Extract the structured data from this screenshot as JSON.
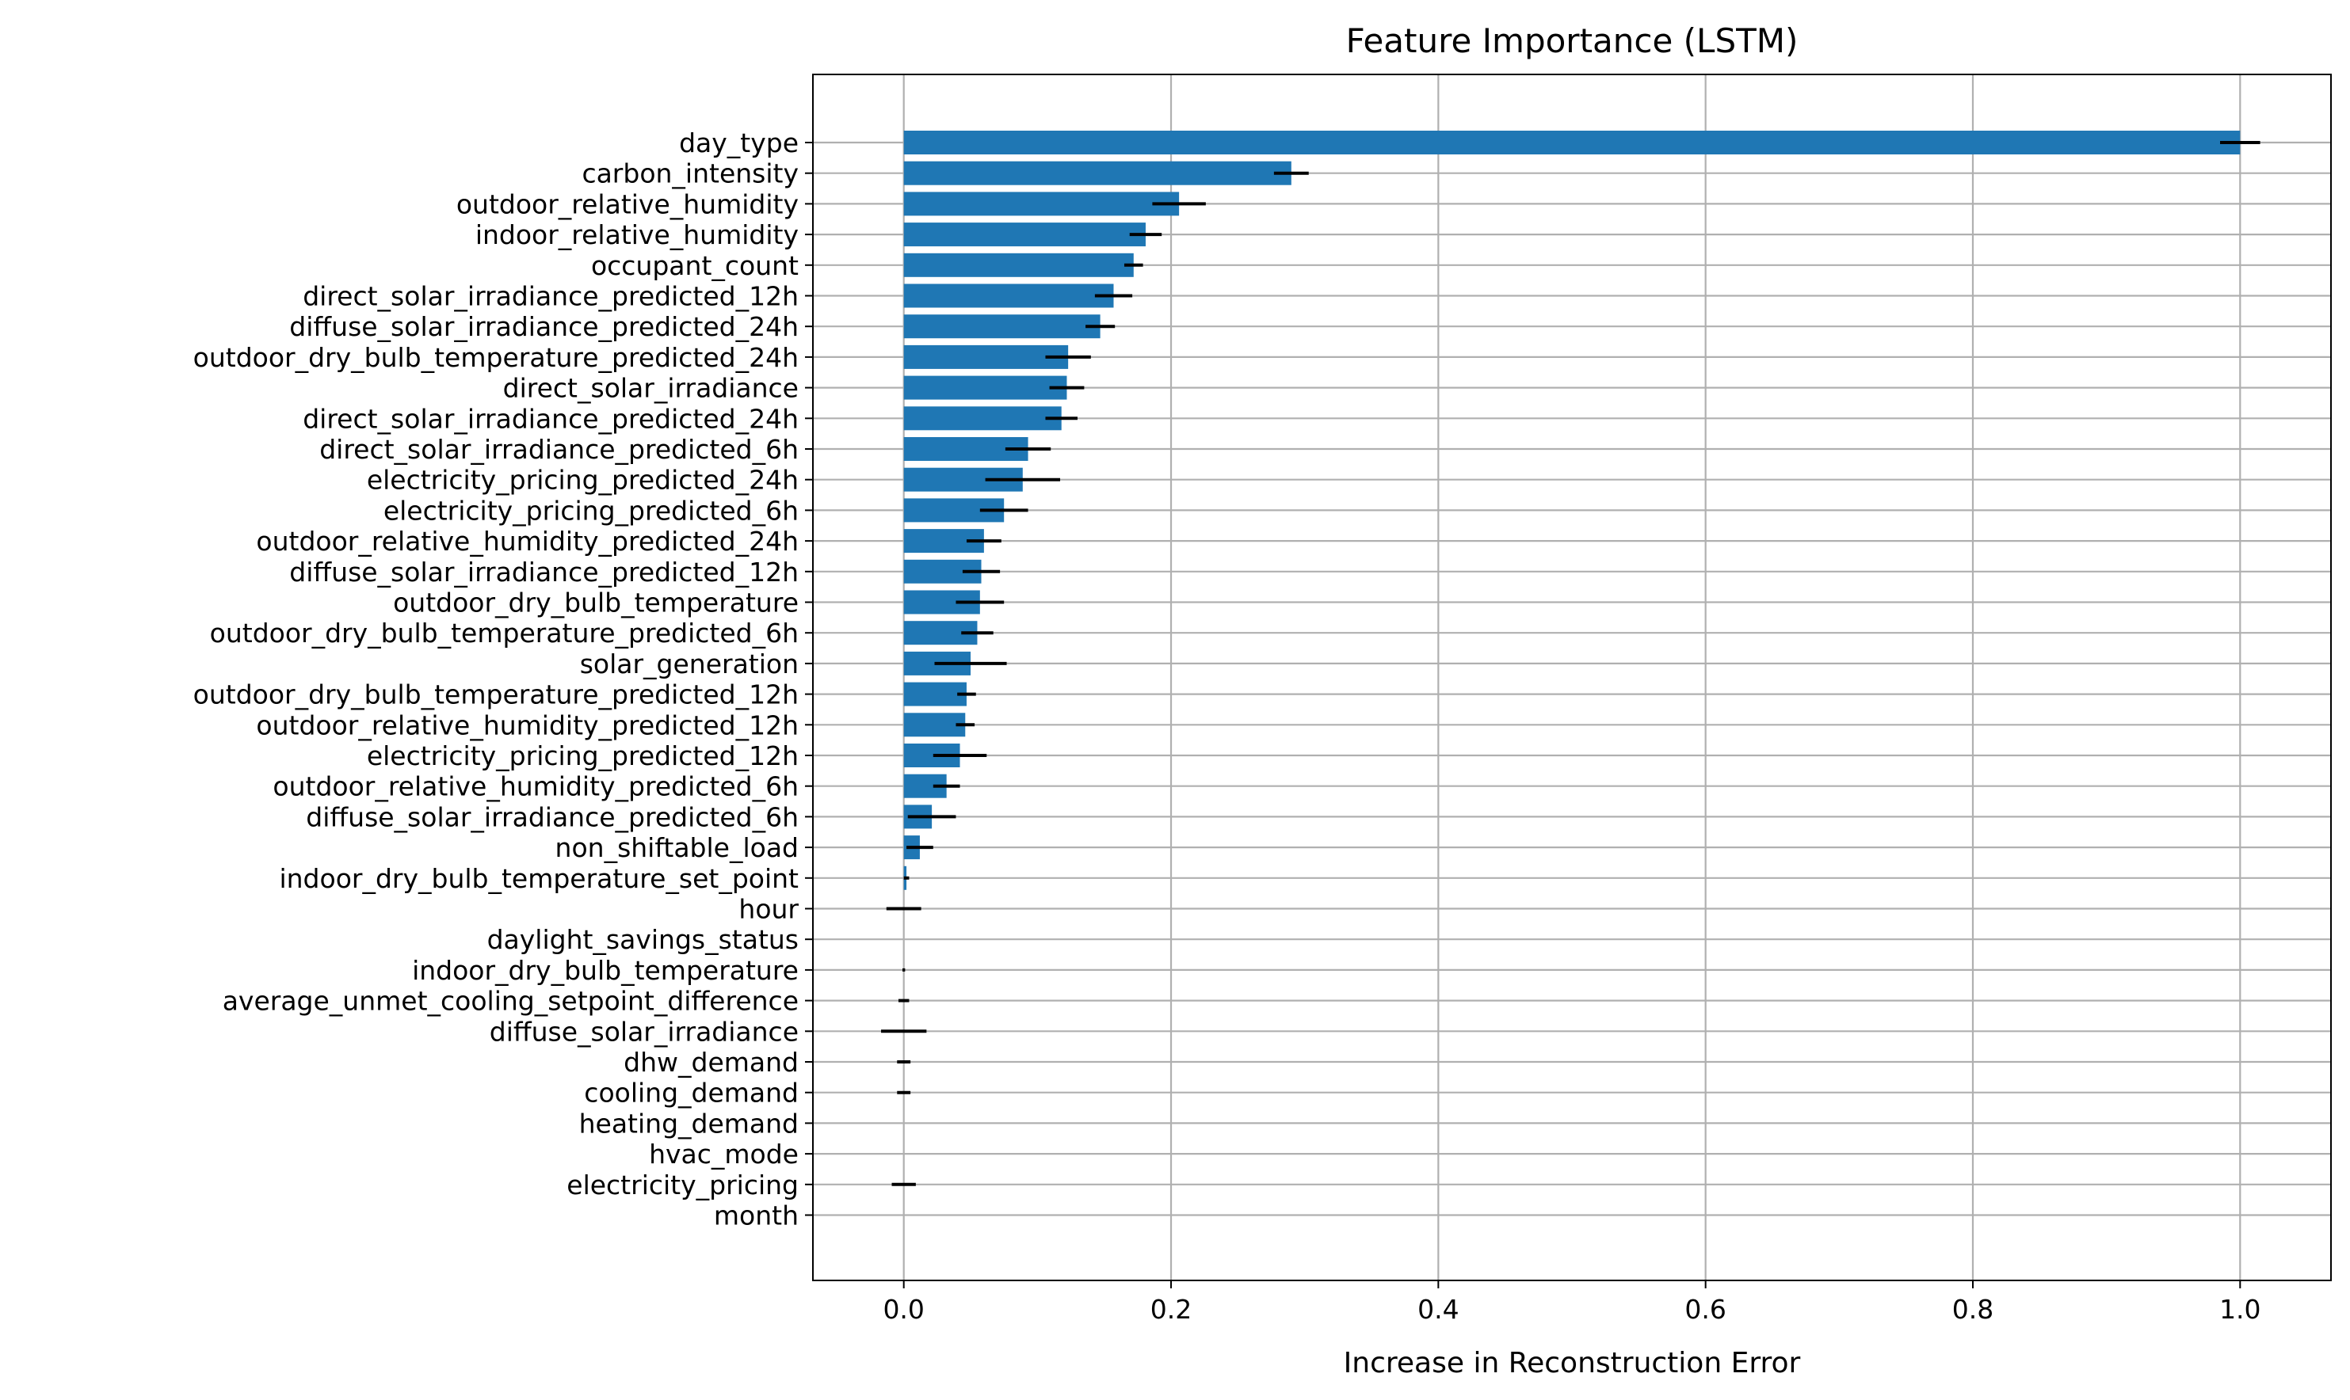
{
  "chart_data": {
    "type": "bar",
    "orientation": "horizontal",
    "title": "Feature Importance (LSTM)",
    "xlabel": "Increase in Reconstruction Error",
    "ylabel": "",
    "xlim": [
      -0.068,
      1.068
    ],
    "xticks": [
      0.0,
      0.2,
      0.4,
      0.6,
      0.8,
      1.0
    ],
    "xtick_labels": [
      "0.0",
      "0.2",
      "0.4",
      "0.6",
      "0.8",
      "1.0"
    ],
    "grid": true,
    "bar_color": "#1f77b4",
    "error_color": "#000000",
    "categories": [
      "day_type",
      "carbon_intensity",
      "outdoor_relative_humidity",
      "indoor_relative_humidity",
      "occupant_count",
      "direct_solar_irradiance_predicted_12h",
      "diffuse_solar_irradiance_predicted_24h",
      "outdoor_dry_bulb_temperature_predicted_24h",
      "direct_solar_irradiance",
      "direct_solar_irradiance_predicted_24h",
      "direct_solar_irradiance_predicted_6h",
      "electricity_pricing_predicted_24h",
      "electricity_pricing_predicted_6h",
      "outdoor_relative_humidity_predicted_24h",
      "diffuse_solar_irradiance_predicted_12h",
      "outdoor_dry_bulb_temperature",
      "outdoor_dry_bulb_temperature_predicted_6h",
      "solar_generation",
      "outdoor_dry_bulb_temperature_predicted_12h",
      "outdoor_relative_humidity_predicted_12h",
      "electricity_pricing_predicted_12h",
      "outdoor_relative_humidity_predicted_6h",
      "diffuse_solar_irradiance_predicted_6h",
      "non_shiftable_load",
      "indoor_dry_bulb_temperature_set_point",
      "hour",
      "daylight_savings_status",
      "indoor_dry_bulb_temperature",
      "average_unmet_cooling_setpoint_difference",
      "diffuse_solar_irradiance",
      "dhw_demand",
      "cooling_demand",
      "heating_demand",
      "hvac_mode",
      "electricity_pricing",
      "month"
    ],
    "values": [
      1.0,
      0.29,
      0.206,
      0.181,
      0.172,
      0.157,
      0.147,
      0.123,
      0.122,
      0.118,
      0.093,
      0.089,
      0.075,
      0.06,
      0.058,
      0.057,
      0.055,
      0.05,
      0.047,
      0.046,
      0.042,
      0.032,
      0.021,
      0.012,
      0.002,
      0.0,
      0.0,
      0.0,
      0.0,
      0.0,
      0.0,
      0.0,
      0.0,
      0.0,
      0.0,
      0.0
    ],
    "errors": [
      0.015,
      0.013,
      0.02,
      0.012,
      0.007,
      0.014,
      0.011,
      0.017,
      0.013,
      0.012,
      0.017,
      0.028,
      0.018,
      0.013,
      0.014,
      0.018,
      0.012,
      0.027,
      0.007,
      0.007,
      0.02,
      0.01,
      0.018,
      0.01,
      0.002,
      0.013,
      0.0,
      0.001,
      0.004,
      0.017,
      0.005,
      0.005,
      0.0,
      0.0,
      0.009,
      0.0
    ]
  }
}
